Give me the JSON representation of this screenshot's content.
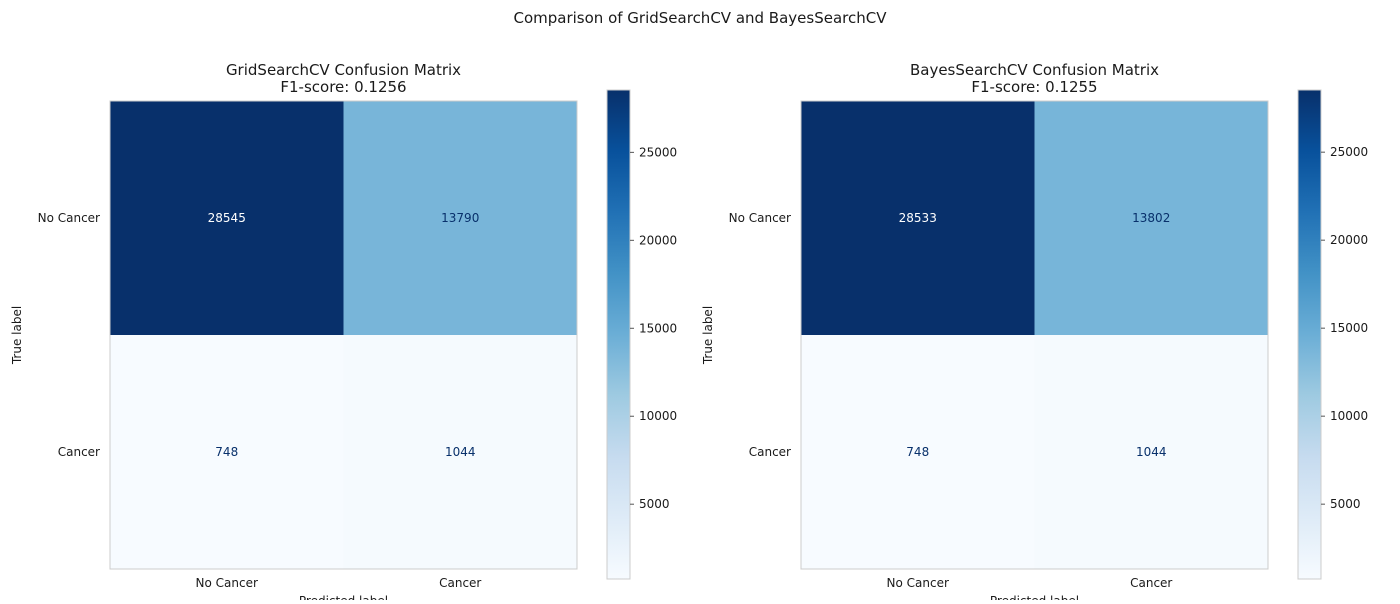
{
  "figure": {
    "suptitle": "Comparison of GridSearchCV and BayesSearchCV"
  },
  "colormap": {
    "name": "Blues",
    "stops": [
      "#f7fbff",
      "#deebf7",
      "#c6dbef",
      "#9ecae1",
      "#6baed6",
      "#4292c6",
      "#2171b5",
      "#08519c",
      "#08306b"
    ]
  },
  "chart_data": [
    {
      "type": "heatmap",
      "title": "GridSearchCV Confusion Matrix",
      "subtitle": "F1-score: 0.1256",
      "xlabel": "Predicted label",
      "ylabel": "True label",
      "x_categories": [
        "No Cancer",
        "Cancer"
      ],
      "y_categories": [
        "No Cancer",
        "Cancer"
      ],
      "matrix": [
        [
          28545,
          13790
        ],
        [
          748,
          1044
        ]
      ],
      "colorbar": {
        "vmin": 748,
        "vmax": 28545,
        "ticks": [
          5000,
          10000,
          15000,
          20000,
          25000
        ]
      },
      "grid": false
    },
    {
      "type": "heatmap",
      "title": "BayesSearchCV Confusion Matrix",
      "subtitle": "F1-score: 0.1255",
      "xlabel": "Predicted label",
      "ylabel": "True label",
      "x_categories": [
        "No Cancer",
        "Cancer"
      ],
      "y_categories": [
        "No Cancer",
        "Cancer"
      ],
      "matrix": [
        [
          28533,
          13802
        ],
        [
          748,
          1044
        ]
      ],
      "colorbar": {
        "vmin": 748,
        "vmax": 28533,
        "ticks": [
          5000,
          10000,
          15000,
          20000,
          25000
        ]
      },
      "grid": false
    }
  ]
}
